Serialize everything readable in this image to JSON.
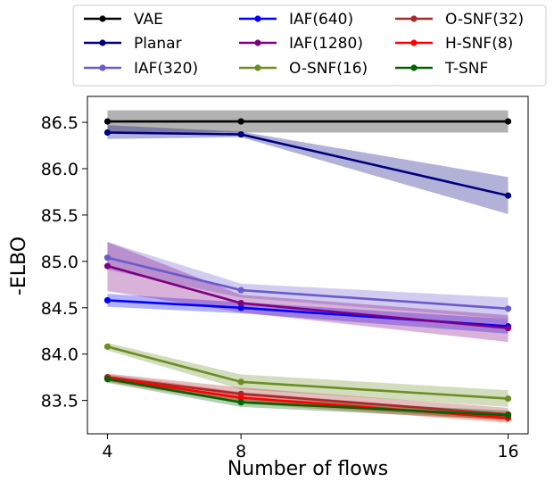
{
  "chart_data": {
    "type": "line",
    "xlabel": "Number of flows",
    "ylabel": "-ELBO",
    "x": [
      4,
      8,
      16
    ],
    "x_ticks": [
      "4",
      "8",
      "16"
    ],
    "xlim": [
      3.4,
      16.6
    ],
    "ylim": [
      83.14,
      86.78
    ],
    "y_ticks": [
      "83.5",
      "84.0",
      "84.5",
      "85.0",
      "85.5",
      "86.0",
      "86.5"
    ],
    "grid": false,
    "legend_position": "top",
    "series": [
      {
        "name": "VAE",
        "color": "#000000",
        "values": [
          86.51,
          86.51,
          86.51
        ],
        "band": [
          [
            86.39,
            86.63
          ],
          [
            86.39,
            86.63
          ],
          [
            86.39,
            86.63
          ]
        ]
      },
      {
        "name": "Planar",
        "color": "#00007f",
        "values": [
          86.39,
          86.37,
          85.71
        ],
        "band": [
          [
            86.32,
            86.47
          ],
          [
            86.34,
            86.4
          ],
          [
            85.51,
            85.91
          ]
        ]
      },
      {
        "name": "IAF(320)",
        "color": "#6a5acd",
        "values": [
          85.04,
          84.69,
          84.49
        ],
        "band": [
          [
            84.91,
            85.21
          ],
          [
            84.61,
            84.76
          ],
          [
            84.38,
            84.61
          ]
        ]
      },
      {
        "name": "IAF(640)",
        "color": "#0000ff",
        "values": [
          84.58,
          84.5,
          84.3
        ],
        "band": [
          [
            84.51,
            84.65
          ],
          [
            84.44,
            84.56
          ],
          [
            84.22,
            84.38
          ]
        ]
      },
      {
        "name": "IAF(1280)",
        "color": "#800080",
        "values": [
          84.95,
          84.55,
          84.28
        ],
        "band": [
          [
            84.68,
            85.21
          ],
          [
            84.45,
            84.64
          ],
          [
            84.13,
            84.42
          ]
        ]
      },
      {
        "name": "O-SNF(16)",
        "color": "#6b8e23",
        "values": [
          84.08,
          83.7,
          83.52
        ],
        "band": [
          [
            84.04,
            84.12
          ],
          [
            83.62,
            83.78
          ],
          [
            83.43,
            83.61
          ]
        ]
      },
      {
        "name": "O-SNF(32)",
        "color": "#a52a2a",
        "values": [
          83.75,
          83.57,
          83.35
        ],
        "band": [
          [
            83.71,
            83.79
          ],
          [
            83.5,
            83.64
          ],
          [
            83.28,
            83.42
          ]
        ]
      },
      {
        "name": "H-SNF(8)",
        "color": "#ff0000",
        "values": [
          83.74,
          83.53,
          83.31
        ],
        "band": [
          [
            83.7,
            83.78
          ],
          [
            83.47,
            83.59
          ],
          [
            83.26,
            83.36
          ]
        ]
      },
      {
        "name": "T-SNF",
        "color": "#006400",
        "values": [
          83.73,
          83.48,
          83.34
        ],
        "band": [
          [
            83.69,
            83.77
          ],
          [
            83.43,
            83.53
          ],
          [
            83.29,
            83.39
          ]
        ]
      }
    ]
  }
}
